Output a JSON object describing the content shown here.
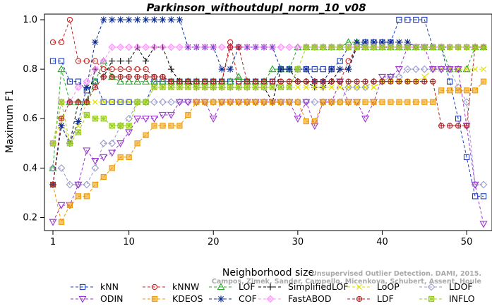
{
  "chart_data": {
    "type": "line",
    "title": "Parkinson_withoutdupl_norm_10_v08",
    "xlabel": "Neighborhood size",
    "ylabel": "Maximum F1",
    "xlim": [
      1,
      52
    ],
    "ylim": [
      0.17,
      1.0
    ],
    "xticks": [
      1,
      10,
      20,
      30,
      40,
      50
    ],
    "yticks": [
      0.2,
      0.4,
      0.6,
      0.8,
      1.0
    ],
    "xtick_labels": [
      "1",
      "10",
      "20",
      "30",
      "40",
      "50"
    ],
    "ytick_labels": [
      "0.2",
      "0.4",
      "0.6",
      "0.8",
      "1.0"
    ],
    "grid": false,
    "legend_position": "bottom",
    "watermark": [
      "Unsupervised Outlier Detection. DAMI, 2015.",
      "Campos, Zimek, Sander, Campello, Micenkova, Schubert, Assent, Houle"
    ],
    "series": [
      {
        "name": "kNN",
        "color": "#1f3fbf",
        "marker": "square",
        "values": [
          0.833,
          0.833,
          0.75,
          0.75,
          0.714,
          0.75,
          0.667,
          0.667,
          0.667,
          0.667,
          0.667,
          0.667,
          0.75,
          0.75,
          0.75,
          0.75,
          0.75,
          0.75,
          0.75,
          0.75,
          0.75,
          0.75,
          0.75,
          0.75,
          0.75,
          0.75,
          0.75,
          0.8,
          0.8,
          0.8,
          0.8,
          0.8,
          0.8,
          0.8,
          0.833,
          0.889,
          0.889,
          0.909,
          0.909,
          0.909,
          0.909,
          1.0,
          1.0,
          1.0,
          1.0,
          0.889,
          0.889,
          0.75,
          0.6,
          0.444,
          0.286,
          0.286
        ]
      },
      {
        "name": "kNNW",
        "color": "#cc2222",
        "marker": "circle",
        "values": [
          0.909,
          0.909,
          1.0,
          0.833,
          0.833,
          0.833,
          0.8,
          0.8,
          0.8,
          0.8,
          0.8,
          0.8,
          0.769,
          0.769,
          0.75,
          0.75,
          0.75,
          0.75,
          0.75,
          0.75,
          0.75,
          0.909,
          0.75,
          0.75,
          0.75,
          0.75,
          0.75,
          0.75,
          0.75,
          0.75,
          0.75,
          0.75,
          0.75,
          0.75,
          0.75,
          0.833,
          0.889,
          0.889,
          0.889,
          0.889,
          0.889,
          0.889,
          0.889,
          0.889,
          0.889,
          0.889,
          0.889,
          0.889,
          0.889,
          0.889,
          0.889,
          0.889
        ]
      },
      {
        "name": "LOF",
        "color": "#22aa22",
        "marker": "triangle",
        "values": [
          0.4,
          0.8,
          0.667,
          0.667,
          0.667,
          0.75,
          0.833,
          0.769,
          0.75,
          0.75,
          0.75,
          0.75,
          0.75,
          0.75,
          0.75,
          0.75,
          0.75,
          0.75,
          0.75,
          0.75,
          0.75,
          0.75,
          0.769,
          0.75,
          0.75,
          0.75,
          0.8,
          0.8,
          0.8,
          0.889,
          0.889,
          0.889,
          0.889,
          0.889,
          0.889,
          0.909,
          0.909,
          0.889,
          0.889,
          0.889,
          0.889,
          0.889,
          0.889,
          0.889,
          0.889,
          0.889,
          0.889,
          0.8,
          0.8,
          0.8,
          0.889,
          0.889
        ]
      },
      {
        "name": "SimplifiedLOF",
        "color": "#000000",
        "marker": "plus",
        "values": [
          0.333,
          0.571,
          0.5,
          0.667,
          0.667,
          0.8,
          0.769,
          0.833,
          0.833,
          0.833,
          0.889,
          0.833,
          0.889,
          0.889,
          0.8,
          0.75,
          0.75,
          0.727,
          0.727,
          0.727,
          0.727,
          0.727,
          0.727,
          0.727,
          0.727,
          0.727,
          0.667,
          0.8,
          0.8,
          0.75,
          0.75,
          0.727,
          0.727,
          0.75,
          0.8,
          0.8,
          0.889,
          0.889,
          0.889,
          0.889,
          0.889,
          0.889,
          0.889,
          0.889,
          0.889,
          0.889,
          0.889,
          0.889,
          0.889,
          0.889,
          0.889,
          0.889
        ]
      },
      {
        "name": "LoOP",
        "color": "#dddd00",
        "marker": "x",
        "values": [
          0.5,
          0.6,
          0.5,
          0.571,
          0.667,
          0.667,
          0.667,
          0.667,
          0.667,
          0.667,
          0.667,
          0.667,
          0.727,
          0.727,
          0.727,
          0.727,
          0.727,
          0.727,
          0.727,
          0.727,
          0.727,
          0.727,
          0.727,
          0.727,
          0.727,
          0.727,
          0.727,
          0.727,
          0.727,
          0.727,
          0.727,
          0.727,
          0.727,
          0.727,
          0.727,
          0.727,
          0.727,
          0.727,
          0.727,
          0.75,
          0.75,
          0.75,
          0.75,
          0.75,
          0.769,
          0.8,
          0.8,
          0.8,
          0.8,
          0.8,
          0.8,
          0.8
        ]
      },
      {
        "name": "LDOF",
        "color": "#9999cc",
        "marker": "diamond",
        "values": [
          0.4,
          0.4,
          0.333,
          0.333,
          0.333,
          0.4,
          0.5,
          0.5,
          0.571,
          0.6,
          0.667,
          0.667,
          0.667,
          0.667,
          0.667,
          0.667,
          0.667,
          0.667,
          0.667,
          0.667,
          0.667,
          0.667,
          0.667,
          0.667,
          0.667,
          0.667,
          0.667,
          0.667,
          0.667,
          0.667,
          0.667,
          0.667,
          0.667,
          0.667,
          0.667,
          0.727,
          0.727,
          0.727,
          0.75,
          0.75,
          0.769,
          0.769,
          0.8,
          0.8,
          0.8,
          0.8,
          0.8,
          0.8,
          0.727,
          0.667,
          0.333,
          0.333
        ]
      },
      {
        "name": "ODIN",
        "color": "#9933cc",
        "marker": "triangle-down",
        "values": [
          0.182,
          0.25,
          0.25,
          0.333,
          0.471,
          0.429,
          0.444,
          0.462,
          0.5,
          0.545,
          0.6,
          0.6,
          0.6,
          0.615,
          0.615,
          0.667,
          0.667,
          0.667,
          0.667,
          0.6,
          0.667,
          0.667,
          0.667,
          0.667,
          0.667,
          0.667,
          0.667,
          0.667,
          0.667,
          0.6,
          0.667,
          0.571,
          0.667,
          0.667,
          0.75,
          0.667,
          0.667,
          0.6,
          0.667,
          0.769,
          0.769,
          0.8,
          0.889,
          0.889,
          0.889,
          0.8,
          0.8,
          0.8,
          0.8,
          0.571,
          0.333,
          0.174
        ]
      },
      {
        "name": "KDEOS",
        "color": "#ee9900",
        "marker": "square-filled",
        "values": [
          0.333,
          0.182,
          0.25,
          0.286,
          0.286,
          0.333,
          0.364,
          0.4,
          0.444,
          0.444,
          0.5,
          0.533,
          0.571,
          0.571,
          0.571,
          0.571,
          0.615,
          0.667,
          0.667,
          0.667,
          0.667,
          0.667,
          0.667,
          0.667,
          0.667,
          0.667,
          0.667,
          0.667,
          0.667,
          0.667,
          0.589,
          0.589,
          0.667,
          0.667,
          0.667,
          0.667,
          0.667,
          0.667,
          0.667,
          0.667,
          0.667,
          0.667,
          0.667,
          0.667,
          0.667,
          0.667,
          0.714,
          0.714,
          0.714,
          0.714,
          0.714,
          0.75
        ]
      },
      {
        "name": "COF",
        "color": "#0b2a8f",
        "marker": "asterisk",
        "values": [
          0.333,
          0.571,
          0.5,
          0.588,
          0.727,
          0.909,
          1.0,
          1.0,
          1.0,
          1.0,
          1.0,
          1.0,
          1.0,
          1.0,
          1.0,
          1.0,
          0.889,
          0.889,
          0.889,
          0.889,
          0.8,
          0.8,
          0.889,
          0.889,
          0.889,
          0.889,
          0.889,
          0.8,
          0.8,
          0.8,
          0.8,
          0.75,
          0.75,
          0.8,
          0.8,
          0.8,
          0.909,
          0.909,
          0.909,
          0.909,
          0.909,
          0.909,
          0.909,
          0.889,
          0.889,
          0.889,
          0.889,
          0.889,
          0.889,
          0.889,
          0.889,
          0.889
        ]
      },
      {
        "name": "FastABOD",
        "color": "#ff88ff",
        "marker": "diamond-filled",
        "values": [
          0.5,
          0.667,
          0.667,
          0.727,
          0.75,
          0.8,
          0.833,
          0.889,
          0.889,
          0.889,
          0.889,
          0.889,
          0.889,
          0.889,
          0.889,
          0.889,
          0.889,
          0.889,
          0.889,
          0.889,
          0.889,
          0.889,
          0.889,
          0.889,
          0.889,
          0.889,
          0.889,
          0.889,
          0.889,
          0.889,
          0.889,
          0.889,
          0.889,
          0.889,
          0.889,
          0.889,
          0.889,
          0.889,
          0.889,
          0.889,
          0.889,
          0.889,
          0.889,
          0.889,
          0.889,
          0.889,
          0.889,
          0.889,
          0.889,
          0.889,
          0.889,
          0.889
        ]
      },
      {
        "name": "LDF",
        "color": "#aa2222",
        "marker": "circle-plus",
        "values": [
          0.333,
          0.6,
          0.667,
          0.667,
          0.667,
          0.727,
          0.769,
          0.769,
          0.769,
          0.769,
          0.769,
          0.769,
          0.769,
          0.769,
          0.75,
          0.75,
          0.75,
          0.75,
          0.75,
          0.75,
          0.75,
          0.889,
          0.889,
          0.75,
          0.75,
          0.75,
          0.75,
          0.75,
          0.75,
          0.75,
          0.75,
          0.75,
          0.75,
          0.75,
          0.75,
          0.75,
          0.75,
          0.75,
          0.75,
          0.75,
          0.75,
          0.75,
          0.75,
          0.75,
          0.75,
          0.75,
          0.571,
          0.571,
          0.571,
          0.571,
          0.889,
          0.889
        ]
      },
      {
        "name": "INFLO",
        "color": "#99cc22",
        "marker": "star-box",
        "values": [
          0.5,
          0.667,
          0.5,
          0.545,
          0.615,
          0.6,
          0.6,
          0.571,
          0.571,
          0.571,
          0.667,
          0.667,
          0.727,
          0.727,
          0.727,
          0.727,
          0.727,
          0.727,
          0.727,
          0.727,
          0.727,
          0.727,
          0.727,
          0.727,
          0.727,
          0.727,
          0.727,
          0.727,
          0.727,
          0.8,
          0.889,
          0.889,
          0.889,
          0.889,
          0.889,
          0.889,
          0.889,
          0.889,
          0.889,
          0.889,
          0.889,
          0.889,
          0.889,
          0.889,
          0.889,
          0.889,
          0.889,
          0.889,
          0.889,
          0.889,
          0.889,
          0.889
        ]
      }
    ]
  }
}
